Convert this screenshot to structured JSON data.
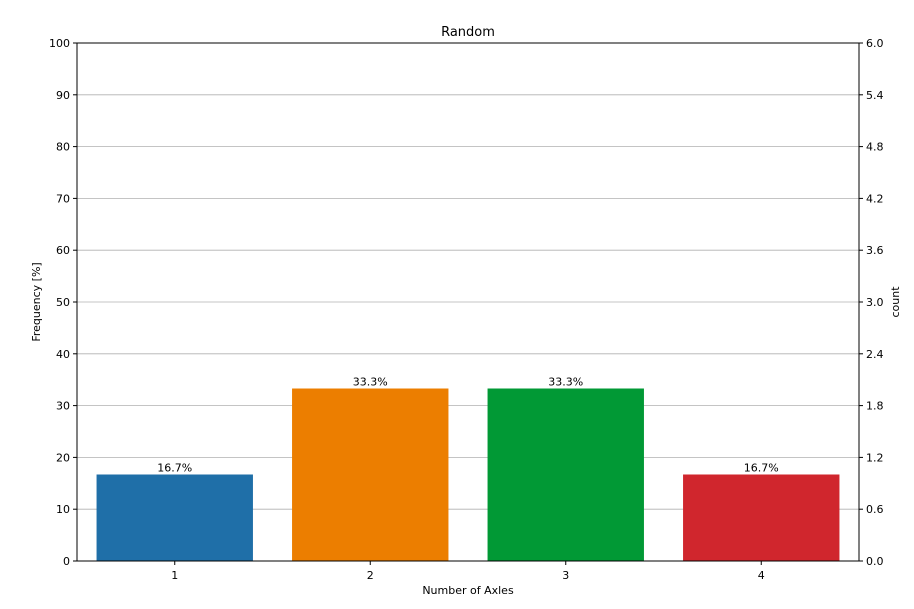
{
  "chart_data": {
    "type": "bar",
    "title": "Random",
    "xlabel": "Number of Axles",
    "ylabel": "Frequency [%]",
    "ylabel_right": "count",
    "categories": [
      "1",
      "2",
      "3",
      "4"
    ],
    "values": [
      16.7,
      33.3,
      33.3,
      16.7
    ],
    "counts": [
      1,
      2,
      2,
      1
    ],
    "data_labels": [
      "16.7%",
      "33.3%",
      "33.3%",
      "16.7%"
    ],
    "bar_colors": [
      "#1f6fa8",
      "#ec7e00",
      "#019935",
      "#d0262d"
    ],
    "ylim": [
      0,
      100
    ],
    "yticks": [
      "0",
      "10",
      "20",
      "30",
      "40",
      "50",
      "60",
      "70",
      "80",
      "90",
      "100"
    ],
    "ylim_right": [
      0,
      6.0
    ],
    "yticks_right": [
      "0.0",
      "0.6",
      "1.2",
      "1.8",
      "2.4",
      "3.0",
      "3.6",
      "4.2",
      "4.8",
      "5.4",
      "6.0"
    ],
    "grid": true
  }
}
